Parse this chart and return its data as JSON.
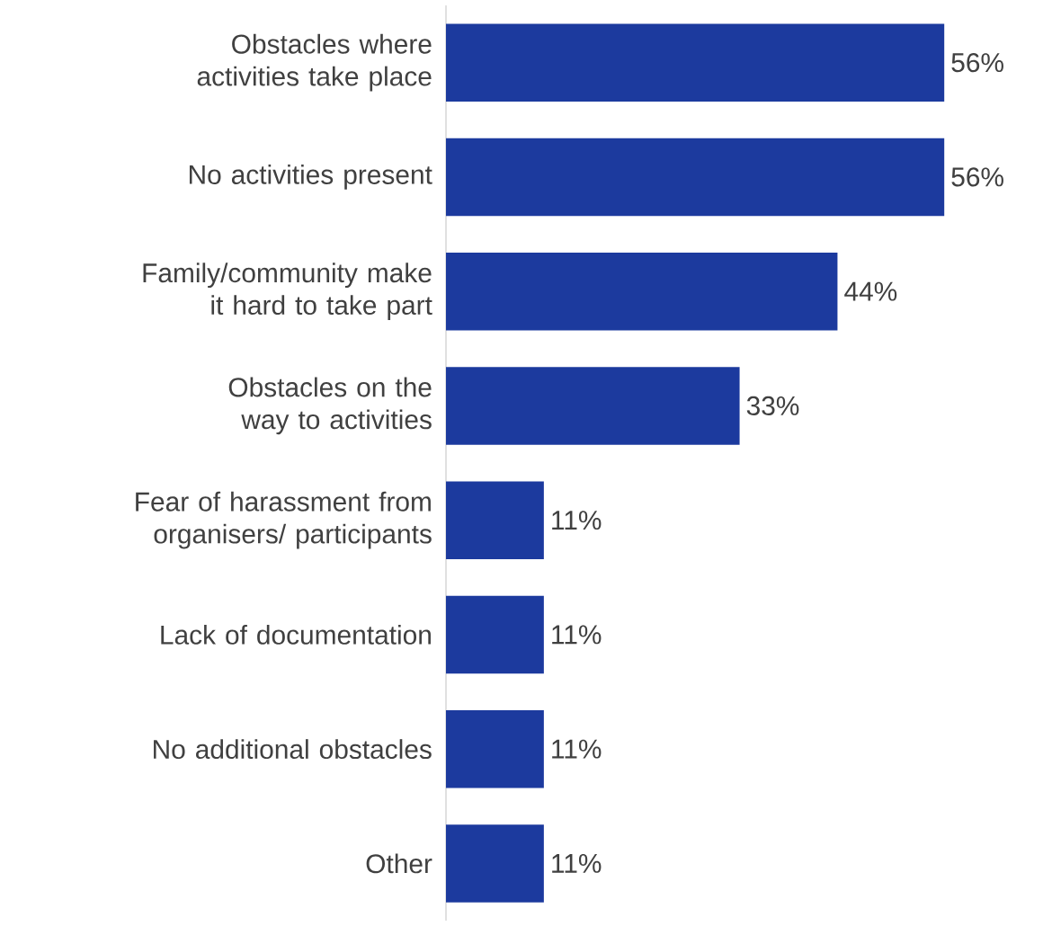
{
  "chart_data": {
    "type": "bar",
    "orientation": "horizontal",
    "color": "#1c3a9e",
    "categories": [
      "Obstacles where activities take place",
      "No activities present",
      "Family/community make it hard to take part",
      "Obstacles on the way to activities",
      "Fear of harassment from organisers/ participants",
      "Lack of documentation",
      "No additional obstacles",
      "Other"
    ],
    "values": [
      56,
      56,
      44,
      33,
      11,
      11,
      11,
      11
    ],
    "value_labels": [
      "56%",
      "56%",
      "44%",
      "33%",
      "11%",
      "11%",
      "11%",
      "11%"
    ]
  }
}
